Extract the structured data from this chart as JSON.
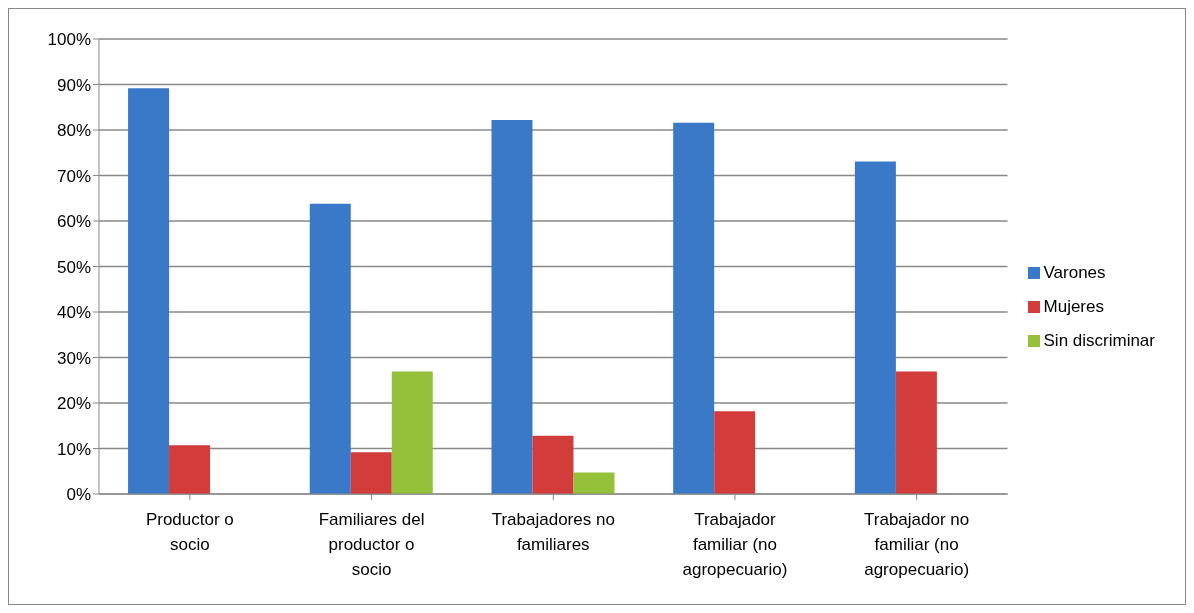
{
  "chart_data": {
    "type": "bar",
    "categories": [
      "Productor o socio",
      "Familiares del productor o socio",
      "Trabajadores no familiares",
      "Trabajador familiar (no agropecuario)",
      "Trabajador no familiar (no agropecuario)"
    ],
    "series": [
      {
        "name": "Varones",
        "color": "#3a78c8",
        "values": [
          89.2,
          63.8,
          82.2,
          81.6,
          73.1
        ]
      },
      {
        "name": "Mujeres",
        "color": "#d23c3a",
        "values": [
          10.7,
          9.2,
          12.8,
          18.2,
          26.9
        ]
      },
      {
        "name": "Sin discriminar",
        "color": "#94c03a",
        "values": [
          null,
          26.9,
          4.7,
          null,
          null
        ]
      }
    ],
    "ylim": [
      0,
      100
    ],
    "yticks": [
      {
        "value": 0,
        "label": "0%"
      },
      {
        "value": 10,
        "label": "10%"
      },
      {
        "value": 20,
        "label": "20%"
      },
      {
        "value": 30,
        "label": "30%"
      },
      {
        "value": 40,
        "label": "40%"
      },
      {
        "value": 50,
        "label": "50%"
      },
      {
        "value": 60,
        "label": "60%"
      },
      {
        "value": 70,
        "label": "70%"
      },
      {
        "value": 80,
        "label": "80%"
      },
      {
        "value": 90,
        "label": "90%"
      },
      {
        "value": 100,
        "label": "100%"
      }
    ],
    "grid": "y",
    "legend": "right"
  }
}
